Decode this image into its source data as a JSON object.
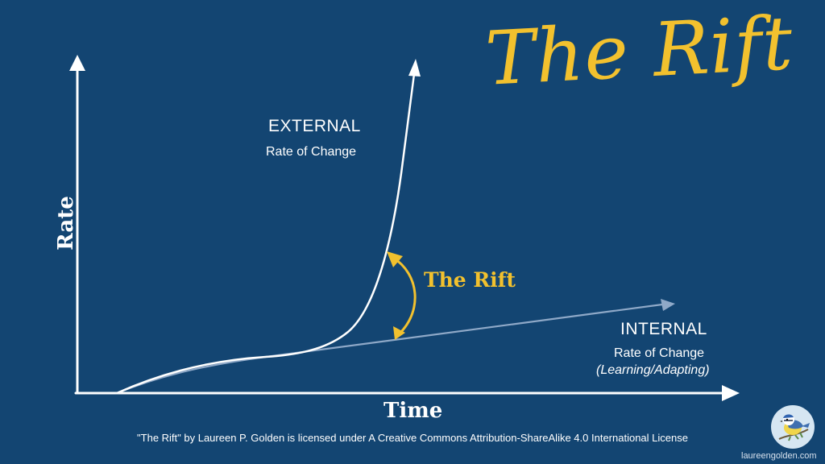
{
  "title": "The Rift",
  "external": {
    "label": "EXTERNAL",
    "sublabel": "Rate of Change"
  },
  "internal": {
    "label": "INTERNAL",
    "sublabel": "Rate of Change",
    "note": "(Learning/Adapting)"
  },
  "rift_label": "The Rift",
  "axes": {
    "y_label": "Rate",
    "x_label": "Time"
  },
  "license": "\"The Rift\" by Laureen P. Golden is licensed under A Creative Commons Attribution-ShareAlike 4.0 International License",
  "site": "laureengolden.com",
  "colors": {
    "background": "#134572",
    "title": "#f2c12e",
    "external_curve": "#ffffff",
    "internal_line": "#8fa9c8",
    "rift_arrow": "#f2c12e"
  },
  "icons": {
    "logo": "blue-tit-bird-icon"
  }
}
